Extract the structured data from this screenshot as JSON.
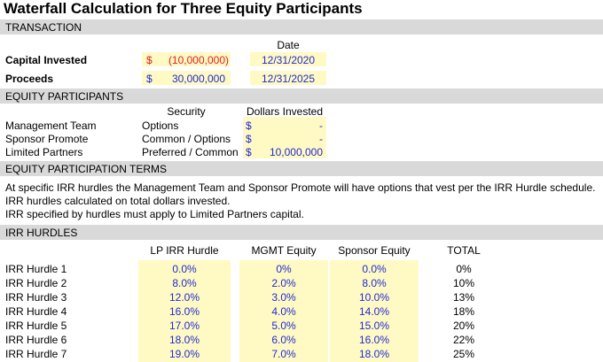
{
  "title": "Waterfall Calculation for Three Equity Participants",
  "sections": {
    "transaction": "TRANSACTION",
    "participants": "EQUITY PARTICIPANTS",
    "terms": "EQUITY PARTICIPATION TERMS",
    "hurdles": "IRR HURDLES"
  },
  "transaction": {
    "date_header": "Date",
    "capital": {
      "label": "Capital Invested",
      "currency": "$",
      "amount": "(10,000,000)",
      "date": "12/31/2020"
    },
    "proceeds": {
      "label": "Proceeds",
      "currency": "$",
      "amount": "30,000,000",
      "date": "12/31/2025"
    }
  },
  "participants": {
    "security_header": "Security",
    "dollars_header": "Dollars Invested",
    "rows": [
      {
        "name": "Management Team",
        "security": "Options",
        "currency": "$",
        "amount": "-"
      },
      {
        "name": "Sponsor Promote",
        "security": "Common / Options",
        "currency": "$",
        "amount": "-"
      },
      {
        "name": "Limited Partners",
        "security": "Preferred / Common",
        "currency": "$",
        "amount": "10,000,000"
      }
    ]
  },
  "terms": [
    "At specific IRR hurdles the Management Team and Sponsor Promote will have options that vest per the IRR Hurdle schedule.",
    "IRR hurdles calculated on total dollars invested.",
    "IRR specified by hurdles must apply to Limited Partners capital."
  ],
  "hurdles": {
    "headers": {
      "lp": "LP IRR Hurdle",
      "mgmt": "MGMT Equity",
      "sponsor": "Sponsor Equity",
      "total": "TOTAL"
    },
    "rows": [
      {
        "label": "IRR Hurdle 1",
        "lp": "0.0%",
        "mgmt": "0%",
        "sponsor": "0.0%",
        "total": "0%"
      },
      {
        "label": "IRR Hurdle 2",
        "lp": "8.0%",
        "mgmt": "2.0%",
        "sponsor": "8.0%",
        "total": "10%"
      },
      {
        "label": "IRR Hurdle 3",
        "lp": "12.0%",
        "mgmt": "3.0%",
        "sponsor": "10.0%",
        "total": "13%"
      },
      {
        "label": "IRR Hurdle 4",
        "lp": "16.0%",
        "mgmt": "4.0%",
        "sponsor": "14.0%",
        "total": "18%"
      },
      {
        "label": "IRR Hurdle 5",
        "lp": "17.0%",
        "mgmt": "5.0%",
        "sponsor": "15.0%",
        "total": "20%"
      },
      {
        "label": "IRR Hurdle 6",
        "lp": "18.0%",
        "mgmt": "6.0%",
        "sponsor": "16.0%",
        "total": "22%"
      },
      {
        "label": "IRR Hurdle 7",
        "lp": "19.0%",
        "mgmt": "7.0%",
        "sponsor": "18.0%",
        "total": "25%"
      }
    ]
  },
  "colors": {
    "input_fill": "#fff9c4",
    "section_fill": "#d9d9d9",
    "input_text": "#1f2bd6",
    "negative_text": "#e02020"
  }
}
